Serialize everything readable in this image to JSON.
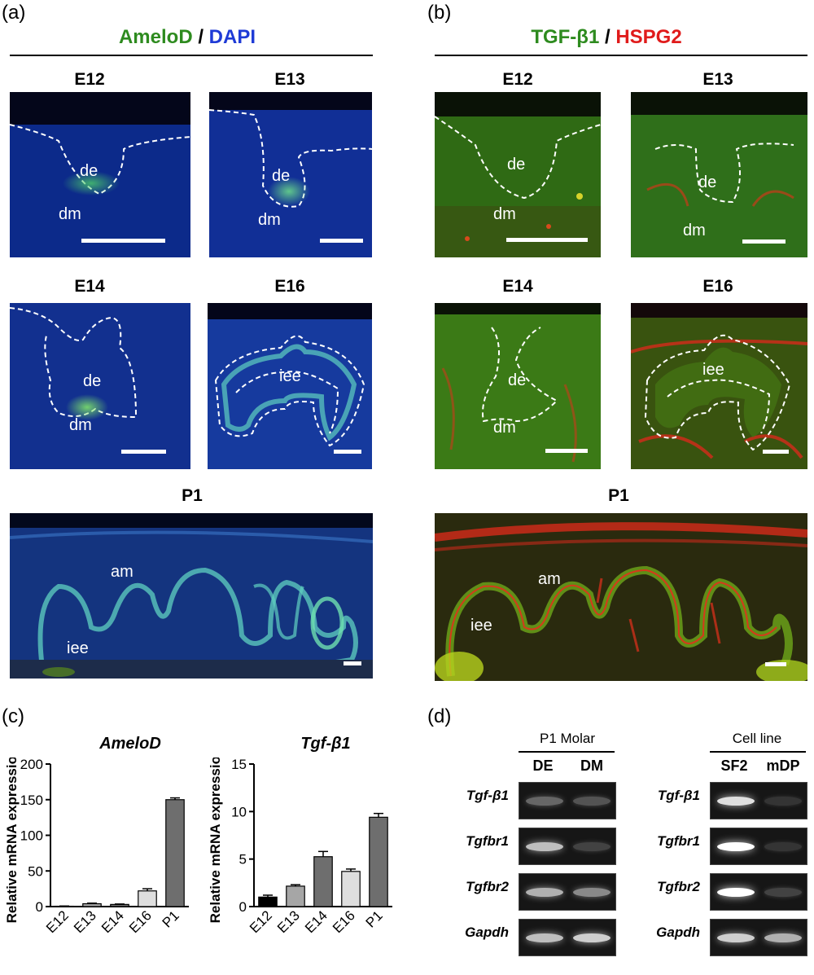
{
  "panels": {
    "a": {
      "label": "(a)",
      "title_parts": [
        {
          "text": "AmeloD",
          "color": "#2e8b1f"
        },
        {
          "text": " / ",
          "color": "#000000"
        },
        {
          "text": "DAPI",
          "color": "#1f3bd6"
        }
      ],
      "stages": [
        "E12",
        "E13",
        "E14",
        "E16",
        "P1"
      ],
      "annotations": {
        "de": "de",
        "dm": "dm",
        "iee": "iee",
        "am": "am"
      }
    },
    "b": {
      "label": "(b)",
      "title_parts": [
        {
          "text": "TGF-β1",
          "color": "#2e8b1f"
        },
        {
          "text": " / ",
          "color": "#000000"
        },
        {
          "text": "HSPG2",
          "color": "#e01b1b"
        }
      ],
      "stages": [
        "E12",
        "E13",
        "E14",
        "E16",
        "P1"
      ],
      "annotations": {
        "de": "de",
        "dm": "dm",
        "iee": "iee",
        "am": "am"
      }
    },
    "c": {
      "label": "(c)"
    },
    "d": {
      "label": "(d)",
      "groups": [
        {
          "header": "P1 Molar",
          "columns": [
            "DE",
            "DM"
          ]
        },
        {
          "header": "Cell line",
          "columns": [
            "SF2",
            "mDP"
          ]
        }
      ],
      "genes": [
        "Tgf-β1",
        "Tgfbr1",
        "Tgfbr2",
        "Gapdh"
      ],
      "band_intensity": [
        [
          [
            0.45,
            0.35
          ],
          [
            0.9,
            0.15
          ]
        ],
        [
          [
            0.8,
            0.25
          ],
          [
            1.0,
            0.15
          ]
        ],
        [
          [
            0.75,
            0.6
          ],
          [
            1.0,
            0.25
          ]
        ],
        [
          [
            0.8,
            0.85
          ],
          [
            0.85,
            0.75
          ]
        ]
      ]
    }
  },
  "chart_data": [
    {
      "type": "bar",
      "title": "AmeloD",
      "ylabel": "Relative mRNA expression",
      "categories": [
        "E12",
        "E13",
        "E14",
        "E16",
        "P1"
      ],
      "values": [
        0.5,
        4,
        3,
        22,
        150
      ],
      "errors": [
        0.3,
        0.8,
        0.6,
        3,
        2.5
      ],
      "ylim": [
        0,
        200
      ],
      "yticks": [
        "0",
        "50",
        "100",
        "150",
        "200"
      ],
      "bar_colors": [
        "#000000",
        "#a6a6a6",
        "#6e6e6e",
        "#dedede",
        "#6e6e6e"
      ]
    },
    {
      "type": "bar",
      "title": "Tgf-β1",
      "ylabel": "Relative mRNA expression",
      "categories": [
        "E12",
        "E13",
        "E14",
        "E16",
        "P1"
      ],
      "values": [
        1.0,
        2.15,
        5.25,
        3.7,
        9.4
      ],
      "errors": [
        0.2,
        0.15,
        0.55,
        0.25,
        0.4
      ],
      "ylim": [
        0,
        15
      ],
      "yticks": [
        "0",
        "5",
        "10",
        "15"
      ],
      "bar_colors": [
        "#000000",
        "#a6a6a6",
        "#6e6e6e",
        "#dedede",
        "#6e6e6e"
      ]
    }
  ]
}
